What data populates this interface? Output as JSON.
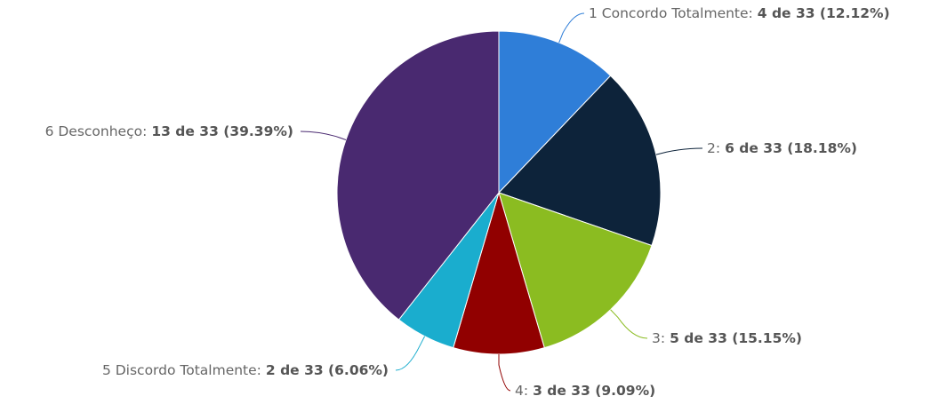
{
  "chart_data": {
    "type": "pie",
    "categories": [
      "1 Concordo Totalmente:",
      "2:",
      "3:",
      "4:",
      "5 Discordo Totalmente:",
      "6 Desconheço:"
    ],
    "values": [
      4,
      6,
      5,
      3,
      2,
      13
    ],
    "value_labels": [
      "4 de 33 (12.12%)",
      "6 de 33 (18.18%)",
      "5 de 33 (15.15%)",
      "3 de 33 (9.09%)",
      "2 de 33 (6.06%)",
      "13 de 33 (39.39%)"
    ],
    "colors": [
      "#2f7ed8",
      "#0d233a",
      "#8bbc21",
      "#910000",
      "#1aadce",
      "#492970"
    ]
  }
}
